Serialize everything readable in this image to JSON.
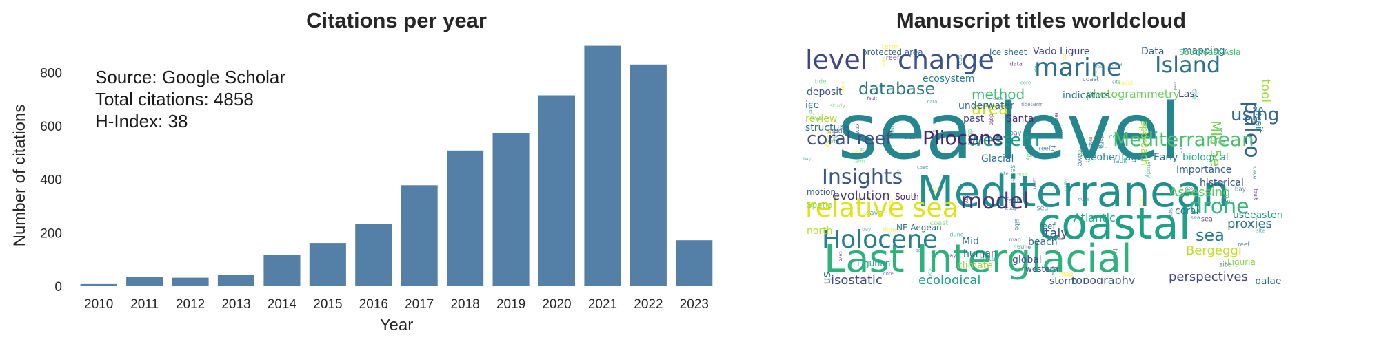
{
  "chart_data": [
    {
      "type": "bar",
      "title": "Citations per year",
      "xlabel": "Year",
      "ylabel": "Number of citations",
      "categories": [
        "2010",
        "2011",
        "2012",
        "2013",
        "2014",
        "2015",
        "2016",
        "2017",
        "2018",
        "2019",
        "2020",
        "2021",
        "2022",
        "2023"
      ],
      "values": [
        8,
        36,
        32,
        42,
        118,
        162,
        234,
        378,
        508,
        572,
        715,
        900,
        830,
        172
      ],
      "ylim": [
        0,
        930
      ],
      "yticks": [
        0,
        200,
        400,
        600,
        800
      ],
      "grid": false,
      "bar_color": "#5480a7",
      "annotations": [
        "Source: Google Scholar",
        "Total citations: 4858",
        "H-Index: 38"
      ]
    },
    {
      "type": "wordcloud",
      "title": "Manuscript titles worldcloud",
      "words": [
        {
          "text": "sea level",
          "color": "#25868e"
        },
        {
          "text": "Mediterranean",
          "color": "#218f8d"
        },
        {
          "text": "coastal",
          "color": "#1fa187"
        },
        {
          "text": "Last Interglacial",
          "color": "#2db27d"
        },
        {
          "text": "relative sea",
          "color": "#dde318"
        },
        {
          "text": "level",
          "color": "#3f4788"
        },
        {
          "text": "change",
          "color": "#3b528b"
        },
        {
          "text": "marine",
          "color": "#2e6d8e"
        },
        {
          "text": "Island",
          "color": "#2c728e"
        },
        {
          "text": "paleo",
          "color": "#34618d"
        },
        {
          "text": "tool",
          "color": "#a0da39"
        },
        {
          "text": "Holocene",
          "color": "#287d8e"
        },
        {
          "text": "model",
          "color": "#463480"
        },
        {
          "text": "drone",
          "color": "#35b779"
        },
        {
          "text": "Insights",
          "color": "#39558c"
        },
        {
          "text": "western",
          "color": "#1f9a8a"
        },
        {
          "text": "Mediterranean",
          "color": "#4ac16d"
        },
        {
          "text": "coral reef",
          "color": "#3e4c8a"
        },
        {
          "text": "Pliocene",
          "color": "#482475"
        },
        {
          "text": "database",
          "color": "#2a778e"
        },
        {
          "text": "area",
          "color": "#d0e11c"
        },
        {
          "text": "using",
          "color": "#31668e"
        },
        {
          "text": "MIS 5e",
          "color": "#7ad151"
        },
        {
          "text": "method",
          "color": "#3dbc74"
        },
        {
          "text": "evolution",
          "color": "#443983"
        },
        {
          "text": "sea",
          "color": "#2a788e"
        },
        {
          "text": "Italy",
          "color": "#39558c"
        },
        {
          "text": "Assessing",
          "color": "#5ec962"
        },
        {
          "text": "Atlantic",
          "color": "#22a884"
        },
        {
          "text": "shorelines",
          "color": "#2c728e"
        },
        {
          "text": "isostatic",
          "color": "#3e4989"
        },
        {
          "text": "ecological",
          "color": "#1fa188"
        },
        {
          "text": "perspectives",
          "color": "#414487"
        },
        {
          "text": "Bergeggi",
          "color": "#bddf26"
        },
        {
          "text": "proxies",
          "color": "#2c728e"
        },
        {
          "text": "topography",
          "color": "#3b528b"
        },
        {
          "text": "photogrammetry",
          "color": "#6ccd5a"
        },
        {
          "text": "Ligurian",
          "color": "#22a785"
        },
        {
          "text": "ice",
          "color": "#2e6e8e"
        },
        {
          "text": "deposit",
          "color": "#3b518b"
        },
        {
          "text": "structure",
          "color": "#2f6c8e"
        },
        {
          "text": "review",
          "color": "#addc30"
        },
        {
          "text": "motion",
          "color": "#38598c"
        },
        {
          "text": "Spatial",
          "color": "#8fd744"
        },
        {
          "text": "Vado Ligure",
          "color": "#404588"
        },
        {
          "text": "Data",
          "color": "#34618d"
        },
        {
          "text": "mapping",
          "color": "#2c718e"
        },
        {
          "text": "ecosystem",
          "color": "#287c8e"
        },
        {
          "text": "Last",
          "color": "#3f4889"
        },
        {
          "text": "indicators",
          "color": "#2b758e"
        },
        {
          "text": "underwater",
          "color": "#30698e"
        },
        {
          "text": "approach",
          "color": "#a8db34"
        },
        {
          "text": "past",
          "color": "#404688"
        },
        {
          "text": "Santa",
          "color": "#472c7a"
        },
        {
          "text": "Glacial",
          "color": "#2d718e"
        },
        {
          "text": "geoheritage",
          "color": "#23898e"
        },
        {
          "text": "Early",
          "color": "#2a768e"
        },
        {
          "text": "biological",
          "color": "#29af7f"
        },
        {
          "text": "Importance",
          "color": "#355e8d"
        },
        {
          "text": "historical",
          "color": "#3a538b"
        },
        {
          "text": "coral",
          "color": "#2a778e"
        },
        {
          "text": "use",
          "color": "#2b748e"
        },
        {
          "text": "eastern",
          "color": "#1f9e89"
        },
        {
          "text": "beach",
          "color": "#30698e"
        },
        {
          "text": "global",
          "color": "#3e4a89"
        },
        {
          "text": "human",
          "color": "#30698e"
        },
        {
          "text": "climate",
          "color": "#9dd93b"
        },
        {
          "text": "Mid",
          "color": "#2d708e"
        },
        {
          "text": "storm",
          "color": "#375b8d"
        },
        {
          "text": "reef",
          "color": "#2c728e"
        },
        {
          "text": "South",
          "color": "#482878"
        },
        {
          "text": "NE Aegean",
          "color": "#2d708e"
        },
        {
          "text": "north",
          "color": "#b5de2b"
        },
        {
          "text": "western",
          "color": "#3b528b"
        },
        {
          "text": "palaeo",
          "color": "#2d718e"
        },
        {
          "text": "protected area",
          "color": "#34608d"
        },
        {
          "text": "ice sheet",
          "color": "#2f6c8e"
        },
        {
          "text": "Southeast Asia",
          "color": "#44bf70"
        },
        {
          "text": "Strait",
          "color": "#25858e"
        },
        {
          "text": "Liguria",
          "color": "#84d44b"
        }
      ]
    }
  ]
}
